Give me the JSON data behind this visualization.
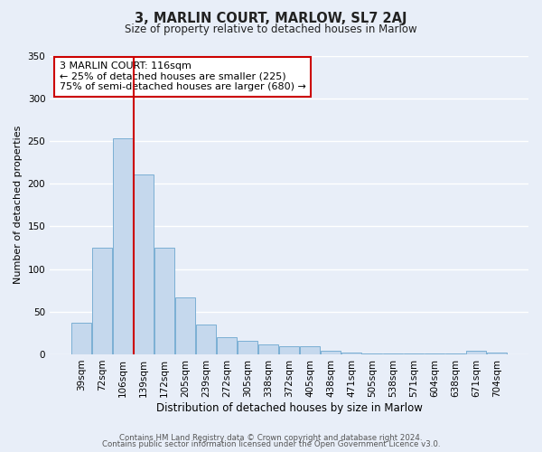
{
  "title": "3, MARLIN COURT, MARLOW, SL7 2AJ",
  "subtitle": "Size of property relative to detached houses in Marlow",
  "xlabel": "Distribution of detached houses by size in Marlow",
  "ylabel": "Number of detached properties",
  "bar_labels": [
    "39sqm",
    "72sqm",
    "106sqm",
    "139sqm",
    "172sqm",
    "205sqm",
    "239sqm",
    "272sqm",
    "305sqm",
    "338sqm",
    "372sqm",
    "405sqm",
    "438sqm",
    "471sqm",
    "505sqm",
    "538sqm",
    "571sqm",
    "604sqm",
    "638sqm",
    "671sqm",
    "704sqm"
  ],
  "bar_heights": [
    37,
    125,
    253,
    211,
    125,
    67,
    35,
    20,
    16,
    12,
    10,
    9,
    4,
    2,
    1,
    1,
    1,
    1,
    1,
    4,
    2
  ],
  "bar_color": "#c5d8ed",
  "bar_edge_color": "#7bafd4",
  "vline_x_bar_index": 2,
  "vline_color": "#cc0000",
  "annotation_title": "3 MARLIN COURT: 116sqm",
  "annotation_line1": "← 25% of detached houses are smaller (225)",
  "annotation_line2": "75% of semi-detached houses are larger (680) →",
  "annotation_box_color": "#ffffff",
  "annotation_box_edge": "#cc0000",
  "ylim": [
    0,
    350
  ],
  "yticks": [
    0,
    50,
    100,
    150,
    200,
    250,
    300,
    350
  ],
  "bg_color": "#e8eef8",
  "grid_color": "#ffffff",
  "footer1": "Contains HM Land Registry data © Crown copyright and database right 2024.",
  "footer2": "Contains public sector information licensed under the Open Government Licence v3.0."
}
